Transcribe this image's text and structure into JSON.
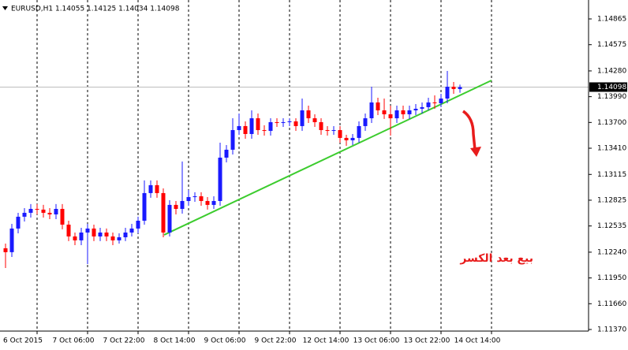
{
  "chart_data": {
    "type": "candlestick",
    "title": "EURUSD,H1  1.14055 1.14125 1.14034 1.14098",
    "annotation": "بيع بعد الكسر",
    "annotation_color": "#e81c1c",
    "up_color": "#1a1aff",
    "down_color": "#ff0000",
    "x": [
      -10,
      -8,
      -6,
      -4,
      -2,
      0,
      2,
      4,
      6,
      8,
      10,
      12,
      14,
      16,
      18,
      20,
      22,
      24,
      26,
      28,
      30,
      32,
      34,
      36,
      38,
      40,
      42,
      44,
      46,
      48,
      50,
      52,
      54,
      56,
      58,
      60,
      62,
      64,
      66,
      68,
      70,
      72,
      74,
      76,
      78,
      80,
      82,
      84,
      86,
      88,
      90,
      92,
      94,
      96,
      98,
      100,
      102,
      104,
      106,
      108,
      110,
      112,
      114,
      116,
      118,
      120,
      122,
      124,
      126,
      128,
      130,
      132,
      134
    ],
    "open": [
      1.12284,
      1.1224,
      1.12506,
      1.12639,
      1.12683,
      1.12727,
      1.12719,
      1.12683,
      1.12665,
      1.12727,
      1.1255,
      1.12417,
      1.12373,
      1.12461,
      1.12506,
      1.12417,
      1.12461,
      1.12417,
      1.12373,
      1.12408,
      1.12461,
      1.12506,
      1.12594,
      1.12905,
      1.12994,
      1.12905,
      1.12461,
      1.12772,
      1.12727,
      1.12816,
      1.1286,
      1.12869,
      1.12816,
      1.12772,
      1.12816,
      1.13304,
      1.13393,
      1.13614,
      1.13659,
      1.1357,
      1.13747,
      1.13614,
      1.13605,
      1.13703,
      1.13694,
      1.13703,
      1.13712,
      1.13659,
      1.13836,
      1.13747,
      1.13703,
      1.13614,
      1.13605,
      1.13614,
      1.13526,
      1.13499,
      1.13526,
      1.13659,
      1.13747,
      1.13925,
      1.13836,
      1.13792,
      1.13747,
      1.13836,
      1.13792,
      1.13836,
      1.13854,
      1.13872,
      1.13925,
      1.13916,
      1.13969,
      1.14102,
      1.14076
    ],
    "high": [
      1.12337,
      1.12559,
      1.12683,
      1.12736,
      1.12781,
      1.12781,
      1.12772,
      1.12736,
      1.12781,
      1.12781,
      1.12594,
      1.12461,
      1.12514,
      1.12559,
      1.1255,
      1.12514,
      1.12506,
      1.12461,
      1.12452,
      1.12514,
      1.12559,
      1.12639,
      1.13047,
      1.13047,
      1.13047,
      1.12958,
      1.12825,
      1.12816,
      1.1326,
      1.1294,
      1.12914,
      1.12914,
      1.1286,
      1.12869,
      1.13472,
      1.13446,
      1.13747,
      1.13801,
      1.13712,
      1.13836,
      1.13801,
      1.13668,
      1.13747,
      1.13747,
      1.13747,
      1.13747,
      1.13747,
      1.13969,
      1.13889,
      1.13792,
      1.13747,
      1.13659,
      1.13659,
      1.13659,
      1.13561,
      1.1357,
      1.13712,
      1.13801,
      1.14102,
      1.13978,
      1.13969,
      1.13889,
      1.13889,
      1.13889,
      1.13889,
      1.13907,
      1.13925,
      1.13978,
      1.14005,
      1.14022,
      1.1428,
      1.14155,
      1.14125
    ],
    "low": [
      1.12062,
      1.12186,
      1.12452,
      1.12585,
      1.1263,
      1.12665,
      1.1263,
      1.12612,
      1.12612,
      1.12497,
      1.12364,
      1.12319,
      1.12319,
      1.12106,
      1.12364,
      1.12364,
      1.12364,
      1.12319,
      1.12337,
      1.12364,
      1.12417,
      1.12452,
      1.1255,
      1.12852,
      1.12852,
      1.12408,
      1.12417,
      1.12665,
      1.12674,
      1.12763,
      1.12807,
      1.12763,
      1.12719,
      1.12727,
      1.12763,
      1.13251,
      1.13339,
      1.13561,
      1.13517,
      1.13517,
      1.13561,
      1.13552,
      1.13552,
      1.1365,
      1.1365,
      1.13659,
      1.13605,
      1.13605,
      1.13694,
      1.1365,
      1.13561,
      1.13552,
      1.13561,
      1.13472,
      1.13437,
      1.13446,
      1.13472,
      1.13605,
      1.13694,
      1.13783,
      1.13739,
      1.13552,
      1.13694,
      1.13739,
      1.13739,
      1.13783,
      1.13801,
      1.13836,
      1.13854,
      1.13872,
      1.13916,
      1.14022,
      1.14034
    ],
    "close": [
      1.1224,
      1.12506,
      1.12639,
      1.12683,
      1.12727,
      1.12719,
      1.12683,
      1.12665,
      1.12727,
      1.1255,
      1.12417,
      1.12373,
      1.12461,
      1.12506,
      1.12417,
      1.12461,
      1.12417,
      1.12373,
      1.12408,
      1.12461,
      1.12506,
      1.12594,
      1.12905,
      1.12994,
      1.12905,
      1.12461,
      1.12772,
      1.12727,
      1.12816,
      1.1286,
      1.12869,
      1.12816,
      1.12772,
      1.12816,
      1.13304,
      1.13393,
      1.13614,
      1.13659,
      1.1357,
      1.13747,
      1.13614,
      1.13605,
      1.13703,
      1.13694,
      1.13703,
      1.13712,
      1.13659,
      1.13836,
      1.13747,
      1.13703,
      1.13614,
      1.13605,
      1.13614,
      1.13526,
      1.13499,
      1.13526,
      1.13659,
      1.13747,
      1.13925,
      1.13836,
      1.13792,
      1.13747,
      1.13836,
      1.13792,
      1.13836,
      1.13854,
      1.13872,
      1.13925,
      1.13916,
      1.13969,
      1.14102,
      1.14076,
      1.14098
    ],
    "current_price": 1.14098,
    "trendline": {
      "x": [
        40.25,
        144
      ],
      "y": [
        1.12435,
        1.14173
      ],
      "color": "#3ccc2e"
    },
    "xlim": [
      -11.75,
      174.75
    ],
    "ylim": [
      1.11352,
      1.15078
    ],
    "xticks": [
      {
        "value": 0,
        "label": "6 Oct 2015"
      },
      {
        "value": 16,
        "label": "7 Oct 06:00"
      },
      {
        "value": 32,
        "label": "7 Oct 22:00"
      },
      {
        "value": 48,
        "label": "8 Oct 14:00"
      },
      {
        "value": 64,
        "label": "9 Oct 06:00"
      },
      {
        "value": 80,
        "label": "9 Oct 22:00"
      },
      {
        "value": 96,
        "label": "12 Oct 14:00"
      },
      {
        "value": 112,
        "label": "13 Oct 06:00"
      },
      {
        "value": 128,
        "label": "13 Oct 22:00"
      },
      {
        "value": 144,
        "label": "14 Oct 14:00"
      }
    ],
    "yticks": [
      1.14865,
      1.14575,
      {
        "value": 1.1428,
        "label": "1.14280"
      },
      {
        "value": 1.1399,
        "label": "1.13990"
      },
      {
        "value": 1.137,
        "label": "1.13700"
      },
      {
        "value": 1.1341,
        "label": "1.13410"
      },
      1.13115,
      1.12825,
      1.12535,
      {
        "value": 1.1224,
        "label": "1.12240"
      },
      {
        "value": 1.1195,
        "label": "1.11950"
      },
      {
        "value": 1.1166,
        "label": "1.11660"
      },
      {
        "value": 1.1137,
        "label": "1.11370"
      }
    ]
  }
}
